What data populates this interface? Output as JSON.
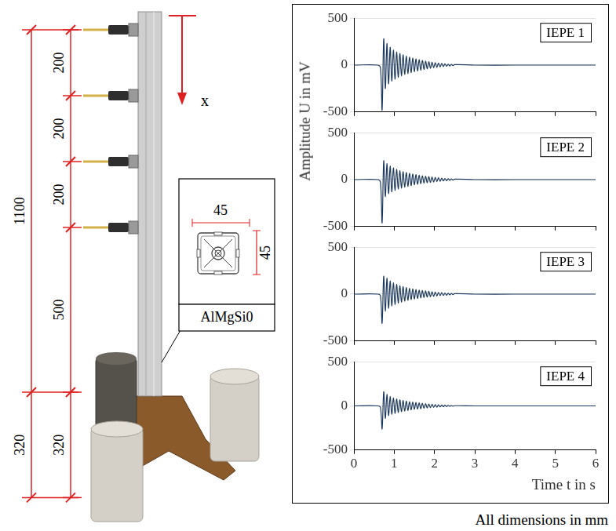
{
  "diagram": {
    "outer_dimensions": [
      1100,
      320
    ],
    "inner_dimensions": [
      200,
      200,
      200,
      500,
      320
    ],
    "axis_label": "x",
    "section": {
      "width": 45,
      "height": 45,
      "material": "AlMgSi0"
    },
    "caption": "All dimensions in mm"
  },
  "figure": {
    "ylabel": "Amplitude U in mV"
  },
  "chart_data": [
    {
      "type": "line",
      "legend": "upper right",
      "grid": true,
      "tick_labels": "y",
      "xlim": [
        0,
        6
      ],
      "xticks": [
        0,
        1,
        2,
        3,
        4,
        5,
        6
      ],
      "ylim": [
        -500,
        500
      ],
      "yticks": [
        -500,
        0,
        500
      ],
      "x": [
        0,
        0.6,
        0.66,
        0.7,
        0.74,
        0.78,
        0.82,
        0.86,
        0.9,
        0.94,
        0.98,
        1.02,
        1.06,
        1.1,
        1.14,
        1.18,
        1.22,
        1.26,
        1.3,
        1.34,
        1.38,
        1.42,
        1.46,
        1.5,
        1.54,
        1.58,
        1.62,
        1.66,
        1.7,
        1.74,
        1.78,
        1.82,
        1.86,
        1.9,
        1.94,
        1.98,
        2.02,
        2.06,
        2.1,
        2.14,
        2.18,
        2.22,
        2.26,
        2.3,
        2.34,
        2.38,
        2.42,
        2.46,
        2.5,
        3,
        4,
        5,
        6
      ],
      "series": [
        {
          "name": "IEPE 1",
          "color": "#1f3a5f",
          "values": [
            0,
            0,
            -30,
            -480,
            280,
            -250,
            230,
            -200,
            190,
            -170,
            160,
            -150,
            140,
            -130,
            125,
            -115,
            110,
            -100,
            95,
            -90,
            85,
            -80,
            75,
            -70,
            66,
            -62,
            58,
            -54,
            50,
            -46,
            43,
            -40,
            37,
            -34,
            31,
            -28,
            26,
            -24,
            22,
            -20,
            18,
            -16,
            14,
            -12,
            10,
            -9,
            8,
            -6,
            5,
            0,
            0,
            0,
            0
          ]
        }
      ]
    },
    {
      "type": "line",
      "legend": "upper right",
      "grid": true,
      "tick_labels": "y",
      "xlim": [
        0,
        6
      ],
      "xticks": [
        0,
        1,
        2,
        3,
        4,
        5,
        6
      ],
      "ylim": [
        -500,
        500
      ],
      "yticks": [
        -500,
        0,
        500
      ],
      "x": [
        0,
        0.6,
        0.66,
        0.7,
        0.74,
        0.78,
        0.82,
        0.86,
        0.9,
        0.94,
        0.98,
        1.02,
        1.06,
        1.1,
        1.14,
        1.18,
        1.22,
        1.26,
        1.3,
        1.34,
        1.38,
        1.42,
        1.46,
        1.5,
        1.54,
        1.58,
        1.62,
        1.66,
        1.7,
        1.74,
        1.78,
        1.82,
        1.86,
        1.9,
        1.94,
        1.98,
        2.02,
        2.06,
        2.1,
        2.14,
        2.18,
        2.22,
        2.26,
        2.3,
        2.34,
        2.38,
        2.42,
        2.46,
        2.5,
        3,
        4,
        5,
        6
      ],
      "series": [
        {
          "name": "IEPE 2",
          "color": "#1f3a5f",
          "values": [
            0,
            0,
            -30,
            -460,
            200,
            -180,
            170,
            -150,
            145,
            -130,
            125,
            -115,
            110,
            -100,
            95,
            -90,
            85,
            -80,
            76,
            -72,
            68,
            -64,
            60,
            -56,
            53,
            -50,
            47,
            -44,
            41,
            -38,
            36,
            -34,
            32,
            -30,
            28,
            -26,
            24,
            -22,
            20,
            -18,
            16,
            -14,
            12,
            -11,
            10,
            -8,
            7,
            -6,
            5,
            0,
            0,
            0,
            0
          ]
        }
      ]
    },
    {
      "type": "line",
      "legend": "upper right",
      "grid": true,
      "tick_labels": "y",
      "xlim": [
        0,
        6
      ],
      "xticks": [
        0,
        1,
        2,
        3,
        4,
        5,
        6
      ],
      "ylim": [
        -500,
        500
      ],
      "yticks": [
        -500,
        0,
        500
      ],
      "x": [
        0,
        0.6,
        0.66,
        0.7,
        0.74,
        0.78,
        0.82,
        0.86,
        0.9,
        0.94,
        0.98,
        1.02,
        1.06,
        1.1,
        1.14,
        1.18,
        1.22,
        1.26,
        1.3,
        1.34,
        1.38,
        1.42,
        1.46,
        1.5,
        1.54,
        1.58,
        1.62,
        1.66,
        1.7,
        1.74,
        1.78,
        1.82,
        1.86,
        1.9,
        1.94,
        1.98,
        2.02,
        2.06,
        2.1,
        2.14,
        2.18,
        2.22,
        2.26,
        2.3,
        2.34,
        2.38,
        2.42,
        2.46,
        2.5,
        3,
        4,
        5,
        6
      ],
      "series": [
        {
          "name": "IEPE 3",
          "color": "#1f3a5f",
          "values": [
            0,
            0,
            -20,
            -310,
            190,
            -180,
            170,
            -150,
            140,
            -125,
            120,
            -110,
            105,
            -95,
            90,
            -85,
            80,
            -75,
            70,
            -66,
            62,
            -58,
            55,
            -52,
            49,
            -46,
            43,
            -40,
            38,
            -36,
            34,
            -32,
            30,
            -28,
            26,
            -24,
            22,
            -20,
            18,
            -16,
            15,
            -14,
            12,
            -11,
            10,
            -8,
            7,
            -6,
            5,
            0,
            0,
            0,
            0
          ]
        }
      ]
    },
    {
      "type": "line",
      "legend": "upper right",
      "grid": true,
      "tick_labels": true,
      "xlabel": "Time t in s",
      "xlim": [
        0,
        6
      ],
      "xticks": [
        0,
        1,
        2,
        3,
        4,
        5,
        6
      ],
      "ylim": [
        -500,
        500
      ],
      "yticks": [
        -500,
        0,
        500
      ],
      "x": [
        0,
        0.6,
        0.66,
        0.7,
        0.74,
        0.78,
        0.82,
        0.86,
        0.9,
        0.94,
        0.98,
        1.02,
        1.06,
        1.1,
        1.14,
        1.18,
        1.22,
        1.26,
        1.3,
        1.34,
        1.38,
        1.42,
        1.46,
        1.5,
        1.54,
        1.58,
        1.62,
        1.66,
        1.7,
        1.74,
        1.78,
        1.82,
        1.86,
        1.9,
        1.94,
        1.98,
        2.02,
        2.06,
        2.1,
        2.14,
        2.18,
        2.22,
        2.26,
        2.3,
        2.34,
        2.38,
        2.42,
        2.46,
        2.5,
        3,
        4,
        5,
        6
      ],
      "series": [
        {
          "name": "IEPE 4",
          "color": "#1f3a5f",
          "values": [
            0,
            0,
            -20,
            -260,
            160,
            -140,
            130,
            -110,
            105,
            -95,
            90,
            -85,
            80,
            -75,
            70,
            -66,
            62,
            -58,
            55,
            -52,
            49,
            -46,
            43,
            -40,
            38,
            -36,
            34,
            -32,
            30,
            -28,
            26,
            -24,
            22,
            -20,
            18,
            -16,
            15,
            -14,
            12,
            -11,
            10,
            -9,
            8,
            -7,
            6,
            -5,
            4,
            -3,
            2,
            0,
            0,
            0,
            0
          ]
        }
      ]
    }
  ]
}
